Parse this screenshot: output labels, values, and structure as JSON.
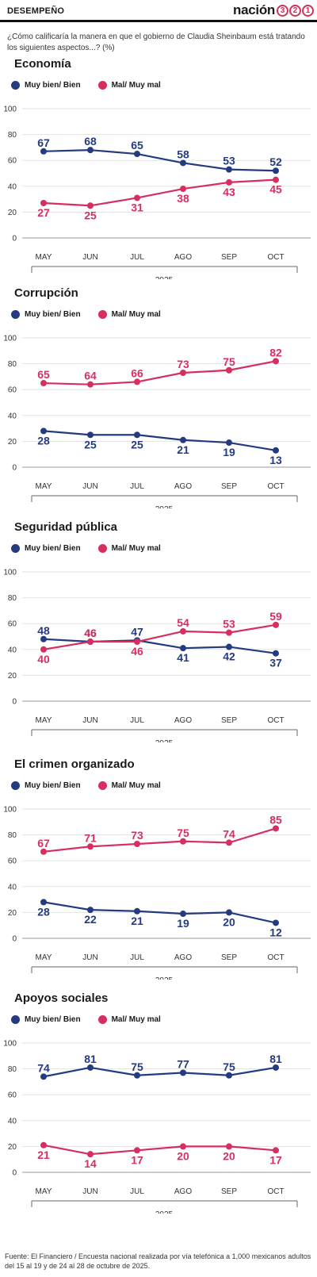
{
  "header": {
    "section": "DESEMPEÑO",
    "brand": "nación",
    "brand_digits": [
      "3",
      "2",
      "1"
    ]
  },
  "question": "¿Cómo calificaría la manera en que el gobierno de Claudia Sheinbaum está tratando los siguientes aspectos...?  (%)",
  "footer": "Fuente: El Financiero / Encuesta nacional realizada por vía telefónica a 1,000 mexicanos adultos del 15 al 19 y de 24 al 28 de octubre de 2025.",
  "colors": {
    "good": "#253b80",
    "bad": "#d62f5f"
  },
  "chart_data": [
    {
      "type": "line",
      "title": "Economía",
      "categories": [
        "MAY",
        "JUN",
        "JUL",
        "AGO",
        "SEP",
        "OCT"
      ],
      "year": "2025",
      "ylim": [
        0,
        100
      ],
      "yticks": [
        "0",
        "20",
        "40",
        "60",
        "80",
        "100"
      ],
      "legend_position": "top-left",
      "series": [
        {
          "name": "Muy bien/ Bien",
          "values": [
            67,
            68,
            65,
            58,
            53,
            52
          ]
        },
        {
          "name": "Mal/ Muy mal",
          "values": [
            27,
            25,
            31,
            38,
            43,
            45
          ]
        }
      ]
    },
    {
      "type": "line",
      "title": "Corrupción",
      "categories": [
        "MAY",
        "JUN",
        "JUL",
        "AGO",
        "SEP",
        "OCT"
      ],
      "year": "2025",
      "ylim": [
        0,
        100
      ],
      "yticks": [
        "0",
        "20",
        "40",
        "60",
        "80",
        "100"
      ],
      "legend_position": "top-left",
      "series": [
        {
          "name": "Muy bien/ Bien",
          "values": [
            28,
            25,
            25,
            21,
            19,
            13
          ]
        },
        {
          "name": "Mal/ Muy mal",
          "values": [
            65,
            64,
            66,
            73,
            75,
            82
          ]
        }
      ]
    },
    {
      "type": "line",
      "title": "Seguridad pública",
      "categories": [
        "MAY",
        "JUN",
        "JUL",
        "AGO",
        "SEP",
        "OCT"
      ],
      "year": "2025",
      "ylim": [
        0,
        100
      ],
      "yticks": [
        "0",
        "20",
        "40",
        "60",
        "80",
        "100"
      ],
      "legend_position": "top-left",
      "series": [
        {
          "name": "Muy bien/ Bien",
          "values": [
            48,
            46,
            47,
            41,
            42,
            37
          ]
        },
        {
          "name": "Mal/ Muy mal",
          "values": [
            40,
            46,
            46,
            54,
            53,
            59
          ]
        }
      ]
    },
    {
      "type": "line",
      "title": "El crimen organizado",
      "categories": [
        "MAY",
        "JUN",
        "JUL",
        "AGO",
        "SEP",
        "OCT"
      ],
      "year": "2025",
      "ylim": [
        0,
        100
      ],
      "yticks": [
        "0",
        "20",
        "40",
        "60",
        "80",
        "100"
      ],
      "legend_position": "top-left",
      "series": [
        {
          "name": "Muy bien/ Bien",
          "values": [
            28,
            22,
            21,
            19,
            20,
            12
          ]
        },
        {
          "name": "Mal/ Muy mal",
          "values": [
            67,
            71,
            73,
            75,
            74,
            85
          ]
        }
      ]
    },
    {
      "type": "line",
      "title": "Apoyos sociales",
      "categories": [
        "MAY",
        "JUN",
        "JUL",
        "AGO",
        "SEP",
        "OCT"
      ],
      "year": "2025",
      "ylim": [
        0,
        100
      ],
      "yticks": [
        "0",
        "20",
        "40",
        "60",
        "80",
        "100"
      ],
      "legend_position": "top-left",
      "series": [
        {
          "name": "Muy bien/ Bien",
          "values": [
            74,
            81,
            75,
            77,
            75,
            81
          ]
        },
        {
          "name": "Mal/ Muy mal",
          "values": [
            21,
            14,
            17,
            20,
            20,
            17
          ]
        }
      ]
    }
  ]
}
